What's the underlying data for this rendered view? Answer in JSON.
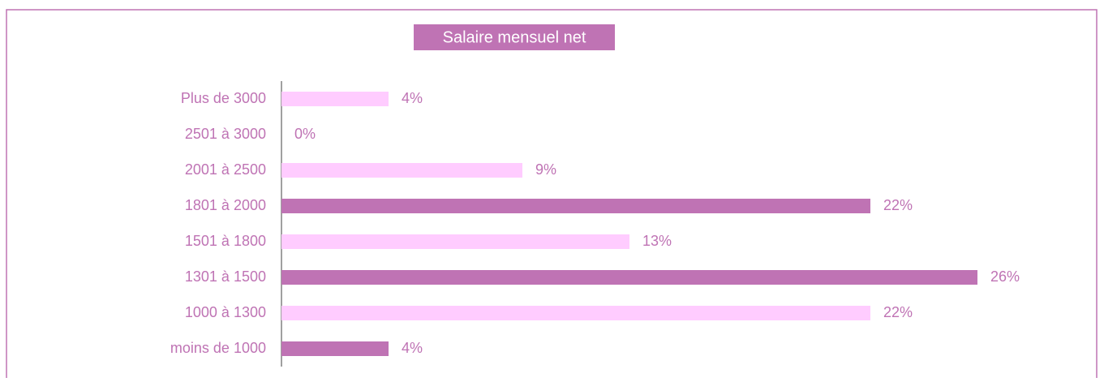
{
  "chart_data": {
    "type": "barh",
    "title": "Salaire mensuel net",
    "categories": [
      "Plus de 3000",
      "2501 à 3000",
      "2001 à 2500",
      "1801 à 2000",
      "1501 à 1800",
      "1301 à 1500",
      "1000 à 1300",
      "moins de 1000"
    ],
    "values": [
      4,
      0,
      9,
      22,
      13,
      26,
      22,
      4
    ],
    "value_labels": [
      "4%",
      "0%",
      "9%",
      "22%",
      "13%",
      "26%",
      "22%",
      "4%"
    ],
    "colors": [
      "#ffccff",
      "#ffccff",
      "#ffccff",
      "#bf73b4",
      "#ffccff",
      "#bf73b4",
      "#ffccff",
      "#bf73b4"
    ]
  }
}
